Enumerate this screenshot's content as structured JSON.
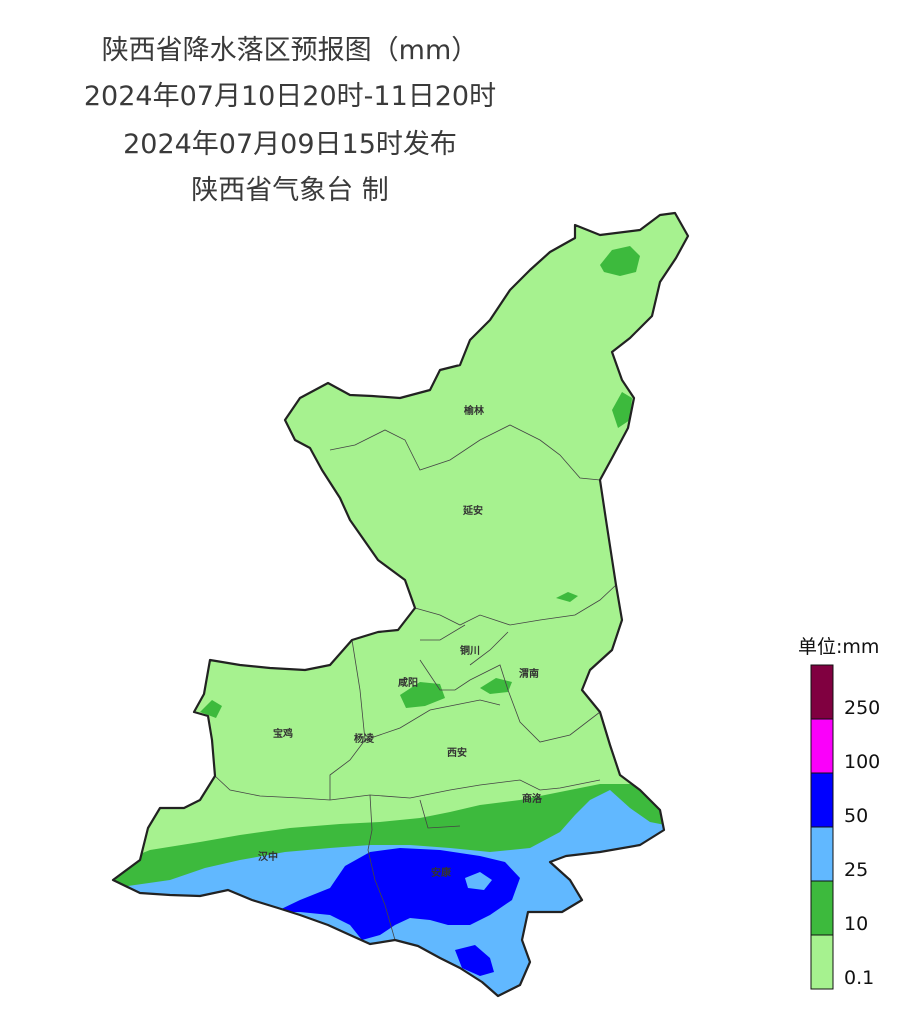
{
  "header": {
    "title": "陕西省降水落区预报图（mm）",
    "valid_period": "2024年07月10日20时-11日20时",
    "issued": "2024年07月09日15时发布",
    "agency": "陕西省气象台 制"
  },
  "map": {
    "cities": [
      {
        "name": "榆林"
      },
      {
        "name": "延安"
      },
      {
        "name": "铜川"
      },
      {
        "name": "咸阳"
      },
      {
        "name": "渭南"
      },
      {
        "name": "宝鸡"
      },
      {
        "name": "杨凌"
      },
      {
        "name": "西安"
      },
      {
        "name": "商洛"
      },
      {
        "name": "汉中"
      },
      {
        "name": "安康"
      }
    ]
  },
  "legend": {
    "title": "单位:mm",
    "bins": [
      {
        "label": "0.1",
        "color": "#a6f28f"
      },
      {
        "label": "10",
        "color": "#3dba3d"
      },
      {
        "label": "25",
        "color": "#61b8ff"
      },
      {
        "label": "50",
        "color": "#0000ff"
      },
      {
        "label": "100",
        "color": "#fa00fa"
      },
      {
        "label": "250",
        "color": "#800040"
      }
    ]
  }
}
